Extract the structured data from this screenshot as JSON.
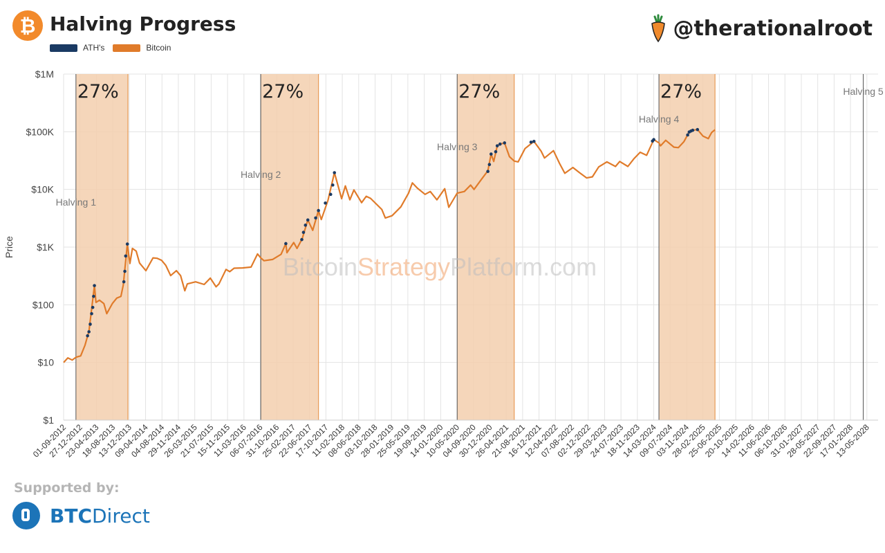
{
  "header": {
    "title": "Halving Progress",
    "handle": "@therationalroot",
    "legend": [
      {
        "label": "ATH's",
        "color": "#1a3a63"
      },
      {
        "label": "Bitcoin",
        "color": "#e07b2a"
      }
    ]
  },
  "footer": {
    "supported_by": "Supported by:",
    "sponsor_bold": "BTC",
    "sponsor_light": "Direct"
  },
  "chart_data": {
    "type": "line",
    "title": "Halving Progress",
    "ylabel": "Price",
    "yscale": "log",
    "ylim": [
      1,
      1000000
    ],
    "y_ticks": [
      "$1",
      "$10",
      "$100",
      "$1K",
      "$10K",
      "$100K",
      "$1M"
    ],
    "x_ticks": [
      "01-09-2012",
      "27-12-2012",
      "23-04-2013",
      "18-08-2013",
      "13-12-2013",
      "09-04-2014",
      "04-08-2014",
      "29-11-2014",
      "26-03-2015",
      "21-07-2015",
      "15-11-2015",
      "11-03-2016",
      "06-07-2016",
      "31-10-2016",
      "25-02-2017",
      "22-06-2017",
      "17-10-2017",
      "11-02-2018",
      "08-06-2018",
      "03-10-2018",
      "28-01-2019",
      "25-05-2019",
      "19-09-2019",
      "14-01-2020",
      "10-05-2020",
      "04-09-2020",
      "30-12-2020",
      "26-04-2021",
      "21-08-2021",
      "16-12-2021",
      "12-04-2022",
      "07-08-2022",
      "02-12-2022",
      "29-03-2023",
      "24-07-2023",
      "18-11-2023",
      "14-03-2024",
      "09-07-2024",
      "03-11-2024",
      "28-02-2025",
      "25-06-2025",
      "20-10-2025",
      "14-02-2026",
      "11-06-2026",
      "06-10-2026",
      "31-01-2027",
      "28-05-2027",
      "22-09-2027",
      "17-01-2028",
      "13-05-2028"
    ],
    "watermark": [
      "Bitcoin",
      "Strategy",
      "Platform.com"
    ],
    "halvings": [
      {
        "label": "Halving 1",
        "date": "2012-11-28"
      },
      {
        "label": "Halving 2",
        "date": "2016-07-09"
      },
      {
        "label": "Halving 3",
        "date": "2020-05-11"
      },
      {
        "label": "Halving 4",
        "date": "2024-04-20"
      },
      {
        "label": "Halving 5",
        "date": "2028-04-17"
      }
    ],
    "bands": [
      {
        "label": "27%",
        "start": "2012-11-28",
        "end": "2013-12-04"
      },
      {
        "label": "27%",
        "start": "2016-07-09",
        "end": "2017-08-25"
      },
      {
        "label": "27%",
        "start": "2020-05-11",
        "end": "2021-06-22"
      },
      {
        "label": "27%",
        "start": "2024-04-20",
        "end": "2025-05-25"
      }
    ],
    "series": [
      {
        "name": "Bitcoin",
        "color": "#e07b2a",
        "points": [
          [
            "2012-09-01",
            10
          ],
          [
            "2012-10-01",
            12
          ],
          [
            "2012-11-01",
            11
          ],
          [
            "2012-11-28",
            12.3
          ],
          [
            "2013-01-01",
            13
          ],
          [
            "2013-02-01",
            20
          ],
          [
            "2013-03-01",
            35
          ],
          [
            "2013-04-09",
            215
          ],
          [
            "2013-04-20",
            110
          ],
          [
            "2013-05-15",
            120
          ],
          [
            "2013-06-15",
            105
          ],
          [
            "2013-07-06",
            70
          ],
          [
            "2013-08-15",
            105
          ],
          [
            "2013-09-15",
            130
          ],
          [
            "2013-10-15",
            140
          ],
          [
            "2013-11-01",
            220
          ],
          [
            "2013-11-30",
            1130
          ],
          [
            "2013-12-18",
            520
          ],
          [
            "2014-01-05",
            950
          ],
          [
            "2014-02-01",
            850
          ],
          [
            "2014-02-25",
            530
          ],
          [
            "2014-04-11",
            390
          ],
          [
            "2014-06-01",
            650
          ],
          [
            "2014-07-01",
            640
          ],
          [
            "2014-08-01",
            590
          ],
          [
            "2014-09-01",
            480
          ],
          [
            "2014-10-05",
            320
          ],
          [
            "2014-11-15",
            390
          ],
          [
            "2014-12-15",
            320
          ],
          [
            "2015-01-14",
            175
          ],
          [
            "2015-02-01",
            230
          ],
          [
            "2015-04-01",
            250
          ],
          [
            "2015-06-01",
            225
          ],
          [
            "2015-07-15",
            290
          ],
          [
            "2015-08-25",
            205
          ],
          [
            "2015-09-15",
            230
          ],
          [
            "2015-11-04",
            410
          ],
          [
            "2015-12-01",
            375
          ],
          [
            "2016-01-01",
            430
          ],
          [
            "2016-03-01",
            435
          ],
          [
            "2016-05-01",
            450
          ],
          [
            "2016-06-16",
            760
          ],
          [
            "2016-07-09",
            650
          ],
          [
            "2016-08-01",
            580
          ],
          [
            "2016-10-01",
            610
          ],
          [
            "2016-12-01",
            750
          ],
          [
            "2017-01-04",
            1150
          ],
          [
            "2017-01-12",
            800
          ],
          [
            "2017-03-01",
            1200
          ],
          [
            "2017-03-25",
            950
          ],
          [
            "2017-05-01",
            1400
          ],
          [
            "2017-06-10",
            2950
          ],
          [
            "2017-07-15",
            1950
          ],
          [
            "2017-08-25",
            4300
          ],
          [
            "2017-09-14",
            3000
          ],
          [
            "2017-11-01",
            6500
          ],
          [
            "2017-12-17",
            19500
          ],
          [
            "2018-02-06",
            6900
          ],
          [
            "2018-03-05",
            11500
          ],
          [
            "2018-04-06",
            6600
          ],
          [
            "2018-05-05",
            9800
          ],
          [
            "2018-06-29",
            5900
          ],
          [
            "2018-08-01",
            7600
          ],
          [
            "2018-09-01",
            7000
          ],
          [
            "2018-11-20",
            4500
          ],
          [
            "2018-12-15",
            3200
          ],
          [
            "2019-02-01",
            3500
          ],
          [
            "2019-04-05",
            5000
          ],
          [
            "2019-05-30",
            8600
          ],
          [
            "2019-06-26",
            13000
          ],
          [
            "2019-08-01",
            10500
          ],
          [
            "2019-09-25",
            8200
          ],
          [
            "2019-11-01",
            9200
          ],
          [
            "2019-12-18",
            6600
          ],
          [
            "2020-02-12",
            10300
          ],
          [
            "2020-03-12",
            4900
          ],
          [
            "2020-05-11",
            8600
          ],
          [
            "2020-07-01",
            9200
          ],
          [
            "2020-08-15",
            11900
          ],
          [
            "2020-09-08",
            10000
          ],
          [
            "2020-11-05",
            15500
          ],
          [
            "2020-12-16",
            21000
          ],
          [
            "2021-01-08",
            41000
          ],
          [
            "2021-01-27",
            30500
          ],
          [
            "2021-02-21",
            57000
          ],
          [
            "2021-03-13",
            61000
          ],
          [
            "2021-04-14",
            64000
          ],
          [
            "2021-05-19",
            37000
          ],
          [
            "2021-06-22",
            31000
          ],
          [
            "2021-07-20",
            30000
          ],
          [
            "2021-09-07",
            51000
          ],
          [
            "2021-11-10",
            68000
          ],
          [
            "2021-12-31",
            46000
          ],
          [
            "2022-01-24",
            35000
          ],
          [
            "2022-03-29",
            47000
          ],
          [
            "2022-05-12",
            28000
          ],
          [
            "2022-06-18",
            19000
          ],
          [
            "2022-08-15",
            24000
          ],
          [
            "2022-10-01",
            19500
          ],
          [
            "2022-11-21",
            15800
          ],
          [
            "2023-01-01",
            16500
          ],
          [
            "2023-02-15",
            24500
          ],
          [
            "2023-04-14",
            30000
          ],
          [
            "2023-06-15",
            25000
          ],
          [
            "2023-07-15",
            30500
          ],
          [
            "2023-09-11",
            25000
          ],
          [
            "2023-10-24",
            34000
          ],
          [
            "2023-12-08",
            44000
          ],
          [
            "2024-01-23",
            39000
          ],
          [
            "2024-03-14",
            73000
          ],
          [
            "2024-04-20",
            64000
          ],
          [
            "2024-05-01",
            57000
          ],
          [
            "2024-06-07",
            71000
          ],
          [
            "2024-08-05",
            54000
          ],
          [
            "2024-09-06",
            53000
          ],
          [
            "2024-10-15",
            67000
          ],
          [
            "2024-11-22",
            99000
          ],
          [
            "2024-12-17",
            106000
          ],
          [
            "2025-01-20",
            109000
          ],
          [
            "2025-02-28",
            84000
          ],
          [
            "2025-04-07",
            76000
          ],
          [
            "2025-05-01",
            97000
          ],
          [
            "2025-05-25",
            108000
          ]
        ]
      },
      {
        "name": "ATH's",
        "color": "#1a3a63",
        "points": [
          [
            "2013-02-19",
            29
          ],
          [
            "2013-03-01",
            34
          ],
          [
            "2013-03-10",
            46
          ],
          [
            "2013-03-20",
            70
          ],
          [
            "2013-03-28",
            90
          ],
          [
            "2013-04-03",
            140
          ],
          [
            "2013-04-09",
            215
          ],
          [
            "2013-11-05",
            250
          ],
          [
            "2013-11-12",
            380
          ],
          [
            "2013-11-18",
            700
          ],
          [
            "2013-11-30",
            1130
          ],
          [
            "2017-01-04",
            1150
          ],
          [
            "2017-04-28",
            1350
          ],
          [
            "2017-05-10",
            1800
          ],
          [
            "2017-05-24",
            2400
          ],
          [
            "2017-06-10",
            2950
          ],
          [
            "2017-08-05",
            3200
          ],
          [
            "2017-08-25",
            4300
          ],
          [
            "2017-10-13",
            5800
          ],
          [
            "2017-11-20",
            8200
          ],
          [
            "2017-12-05",
            11900
          ],
          [
            "2017-12-17",
            19500
          ],
          [
            "2020-12-16",
            20500
          ],
          [
            "2020-12-27",
            27000
          ],
          [
            "2021-01-08",
            41000
          ],
          [
            "2021-02-10",
            45000
          ],
          [
            "2021-02-21",
            57000
          ],
          [
            "2021-03-13",
            61000
          ],
          [
            "2021-04-14",
            64000
          ],
          [
            "2021-10-20",
            66000
          ],
          [
            "2021-11-10",
            68000
          ],
          [
            "2024-03-05",
            69000
          ],
          [
            "2024-03-14",
            73000
          ],
          [
            "2024-11-11",
            88000
          ],
          [
            "2024-11-22",
            99000
          ],
          [
            "2024-12-05",
            103000
          ],
          [
            "2024-12-17",
            106000
          ],
          [
            "2025-01-20",
            109000
          ]
        ]
      }
    ]
  }
}
